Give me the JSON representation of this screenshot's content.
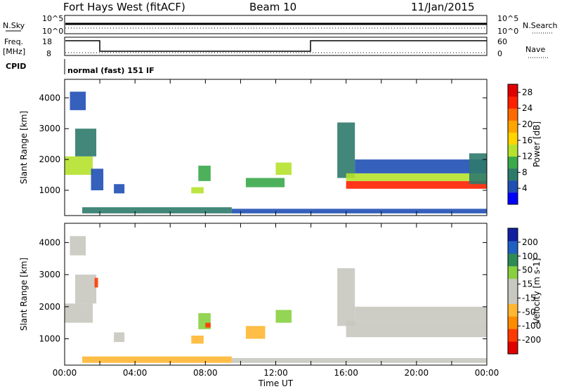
{
  "header": {
    "station": "Fort Hays West (fitACF)",
    "beam": "Beam 10",
    "date": "11/Jan/2015"
  },
  "strip_labels": {
    "nsky": "N.Sky",
    "nsky_hi": "10^5",
    "nsky_lo": "10^0",
    "nsearch": "N.Search",
    "nsearch_hi": "10^5",
    "nsearch_lo": "10^0",
    "freq": "Freq.",
    "freq_unit": "[MHz]",
    "freq_hi": "18",
    "freq_lo": "8",
    "nave": "Nave",
    "nave_hi": "60",
    "nave_lo": "0",
    "cpid": "CPID",
    "cpid_value": "normal (fast) 151 IF"
  },
  "colors": {
    "power": [
      "#0000ff",
      "#1f4fb5",
      "#2d7a6b",
      "#3aa94a",
      "#b5e22d",
      "#ffd400",
      "#ffa500",
      "#ff6a00",
      "#ff2000",
      "#e00000"
    ],
    "velocity": [
      "#e00000",
      "#ff3a00",
      "#ff8c00",
      "#ffb733",
      "#c8c8c0",
      "#c8c8c0",
      "#88d040",
      "#2e8b57",
      "#2060c0",
      "#1020a0"
    ],
    "ground_scatter": "#c8c8c0"
  },
  "chart_data": [
    {
      "type": "heatmap",
      "name_label": "Power",
      "ylabel": "Slant Range [km]",
      "xlabel": "",
      "ylim": [
        180,
        4600
      ],
      "xlim": [
        0,
        24
      ],
      "y_ticks": [
        "1000",
        "2000",
        "3000",
        "4000"
      ],
      "y_tick_values": [
        1000,
        2000,
        3000,
        4000
      ],
      "colorbar_label": "Power [dB]",
      "colorbar_ticks": [
        "4",
        "8",
        "12",
        "16",
        "20",
        "24",
        "28"
      ],
      "colorbar_range": [
        0,
        30
      ],
      "regions": [
        {
          "t0": 0.0,
          "t1": 1.6,
          "r0": 1500,
          "r1": 2100,
          "value": 12
        },
        {
          "t0": 0.6,
          "t1": 1.8,
          "r0": 2100,
          "r1": 3000,
          "value": 8
        },
        {
          "t0": 0.3,
          "t1": 1.2,
          "r0": 3600,
          "r1": 4200,
          "value": 4
        },
        {
          "t0": 1.5,
          "t1": 2.2,
          "r0": 1000,
          "r1": 1700,
          "value": 5
        },
        {
          "t0": 2.8,
          "t1": 3.4,
          "r0": 900,
          "r1": 1200,
          "value": 5
        },
        {
          "t0": 7.2,
          "t1": 7.9,
          "r0": 900,
          "r1": 1100,
          "value": 14
        },
        {
          "t0": 7.6,
          "t1": 8.3,
          "r0": 1300,
          "r1": 1800,
          "value": 9
        },
        {
          "t0": 10.3,
          "t1": 12.5,
          "r0": 1100,
          "r1": 1400,
          "value": 9
        },
        {
          "t0": 12.0,
          "t1": 12.9,
          "r0": 1500,
          "r1": 1900,
          "value": 14
        },
        {
          "t0": 15.5,
          "t1": 16.5,
          "r0": 1400,
          "r1": 3200,
          "value": 8
        },
        {
          "t0": 16.0,
          "t1": 24.0,
          "r0": 1050,
          "r1": 1300,
          "value": 24
        },
        {
          "t0": 16.0,
          "t1": 24.0,
          "r0": 1300,
          "r1": 1550,
          "value": 12
        },
        {
          "t0": 16.5,
          "t1": 24.0,
          "r0": 1550,
          "r1": 2000,
          "value": 5
        },
        {
          "t0": 23.0,
          "t1": 24.0,
          "r0": 1200,
          "r1": 2200,
          "value": 8
        },
        {
          "t0": 1.0,
          "t1": 9.5,
          "r0": 250,
          "r1": 450,
          "value": 6
        },
        {
          "t0": 9.5,
          "t1": 24.0,
          "r0": 250,
          "r1": 400,
          "value": 5
        }
      ]
    },
    {
      "type": "heatmap",
      "name_label": "Velocity",
      "ylabel": "Slant Range [km]",
      "xlabel": "Time UT",
      "ylim": [
        180,
        4600
      ],
      "xlim": [
        0,
        24
      ],
      "x_ticks": [
        "00:00",
        "04:00",
        "08:00",
        "12:00",
        "16:00",
        "20:00",
        "00:00"
      ],
      "x_tick_values": [
        0,
        4,
        8,
        12,
        16,
        20,
        24
      ],
      "y_ticks": [
        "1000",
        "2000",
        "3000",
        "4000"
      ],
      "y_tick_values": [
        1000,
        2000,
        3000,
        4000
      ],
      "colorbar_label": "Velocity [m s-1]",
      "colorbar_ticks": [
        "200",
        "100",
        "50",
        "15",
        "-15",
        "-50",
        "-100",
        "-200"
      ],
      "colorbar_range": [
        -250,
        250
      ],
      "regions": [
        {
          "t0": 0.0,
          "t1": 1.6,
          "r0": 1500,
          "r1": 2100,
          "value": 0
        },
        {
          "t0": 0.6,
          "t1": 1.8,
          "r0": 2100,
          "r1": 3000,
          "value": 0
        },
        {
          "t0": 0.3,
          "t1": 1.2,
          "r0": 3600,
          "r1": 4200,
          "value": 0
        },
        {
          "t0": 1.7,
          "t1": 1.9,
          "r0": 2600,
          "r1": 2900,
          "value": -200
        },
        {
          "t0": 2.8,
          "t1": 3.4,
          "r0": 900,
          "r1": 1200,
          "value": 0
        },
        {
          "t0": 7.2,
          "t1": 7.9,
          "r0": 850,
          "r1": 1100,
          "value": -70
        },
        {
          "t0": 7.6,
          "t1": 8.3,
          "r0": 1300,
          "r1": 1800,
          "value": 80
        },
        {
          "t0": 8.0,
          "t1": 8.3,
          "r0": 1350,
          "r1": 1500,
          "value": -200
        },
        {
          "t0": 10.3,
          "t1": 11.4,
          "r0": 1000,
          "r1": 1400,
          "value": -70
        },
        {
          "t0": 12.0,
          "t1": 12.9,
          "r0": 1500,
          "r1": 1900,
          "value": 60
        },
        {
          "t0": 15.5,
          "t1": 16.5,
          "r0": 1400,
          "r1": 3200,
          "value": 0
        },
        {
          "t0": 16.0,
          "t1": 24.0,
          "r0": 1050,
          "r1": 1550,
          "value": 0
        },
        {
          "t0": 16.5,
          "t1": 24.0,
          "r0": 1550,
          "r1": 2000,
          "value": 0
        },
        {
          "t0": 1.0,
          "t1": 9.5,
          "r0": 250,
          "r1": 450,
          "value": -60
        },
        {
          "t0": 9.5,
          "t1": 24.0,
          "r0": 250,
          "r1": 400,
          "value": -30
        }
      ]
    }
  ]
}
